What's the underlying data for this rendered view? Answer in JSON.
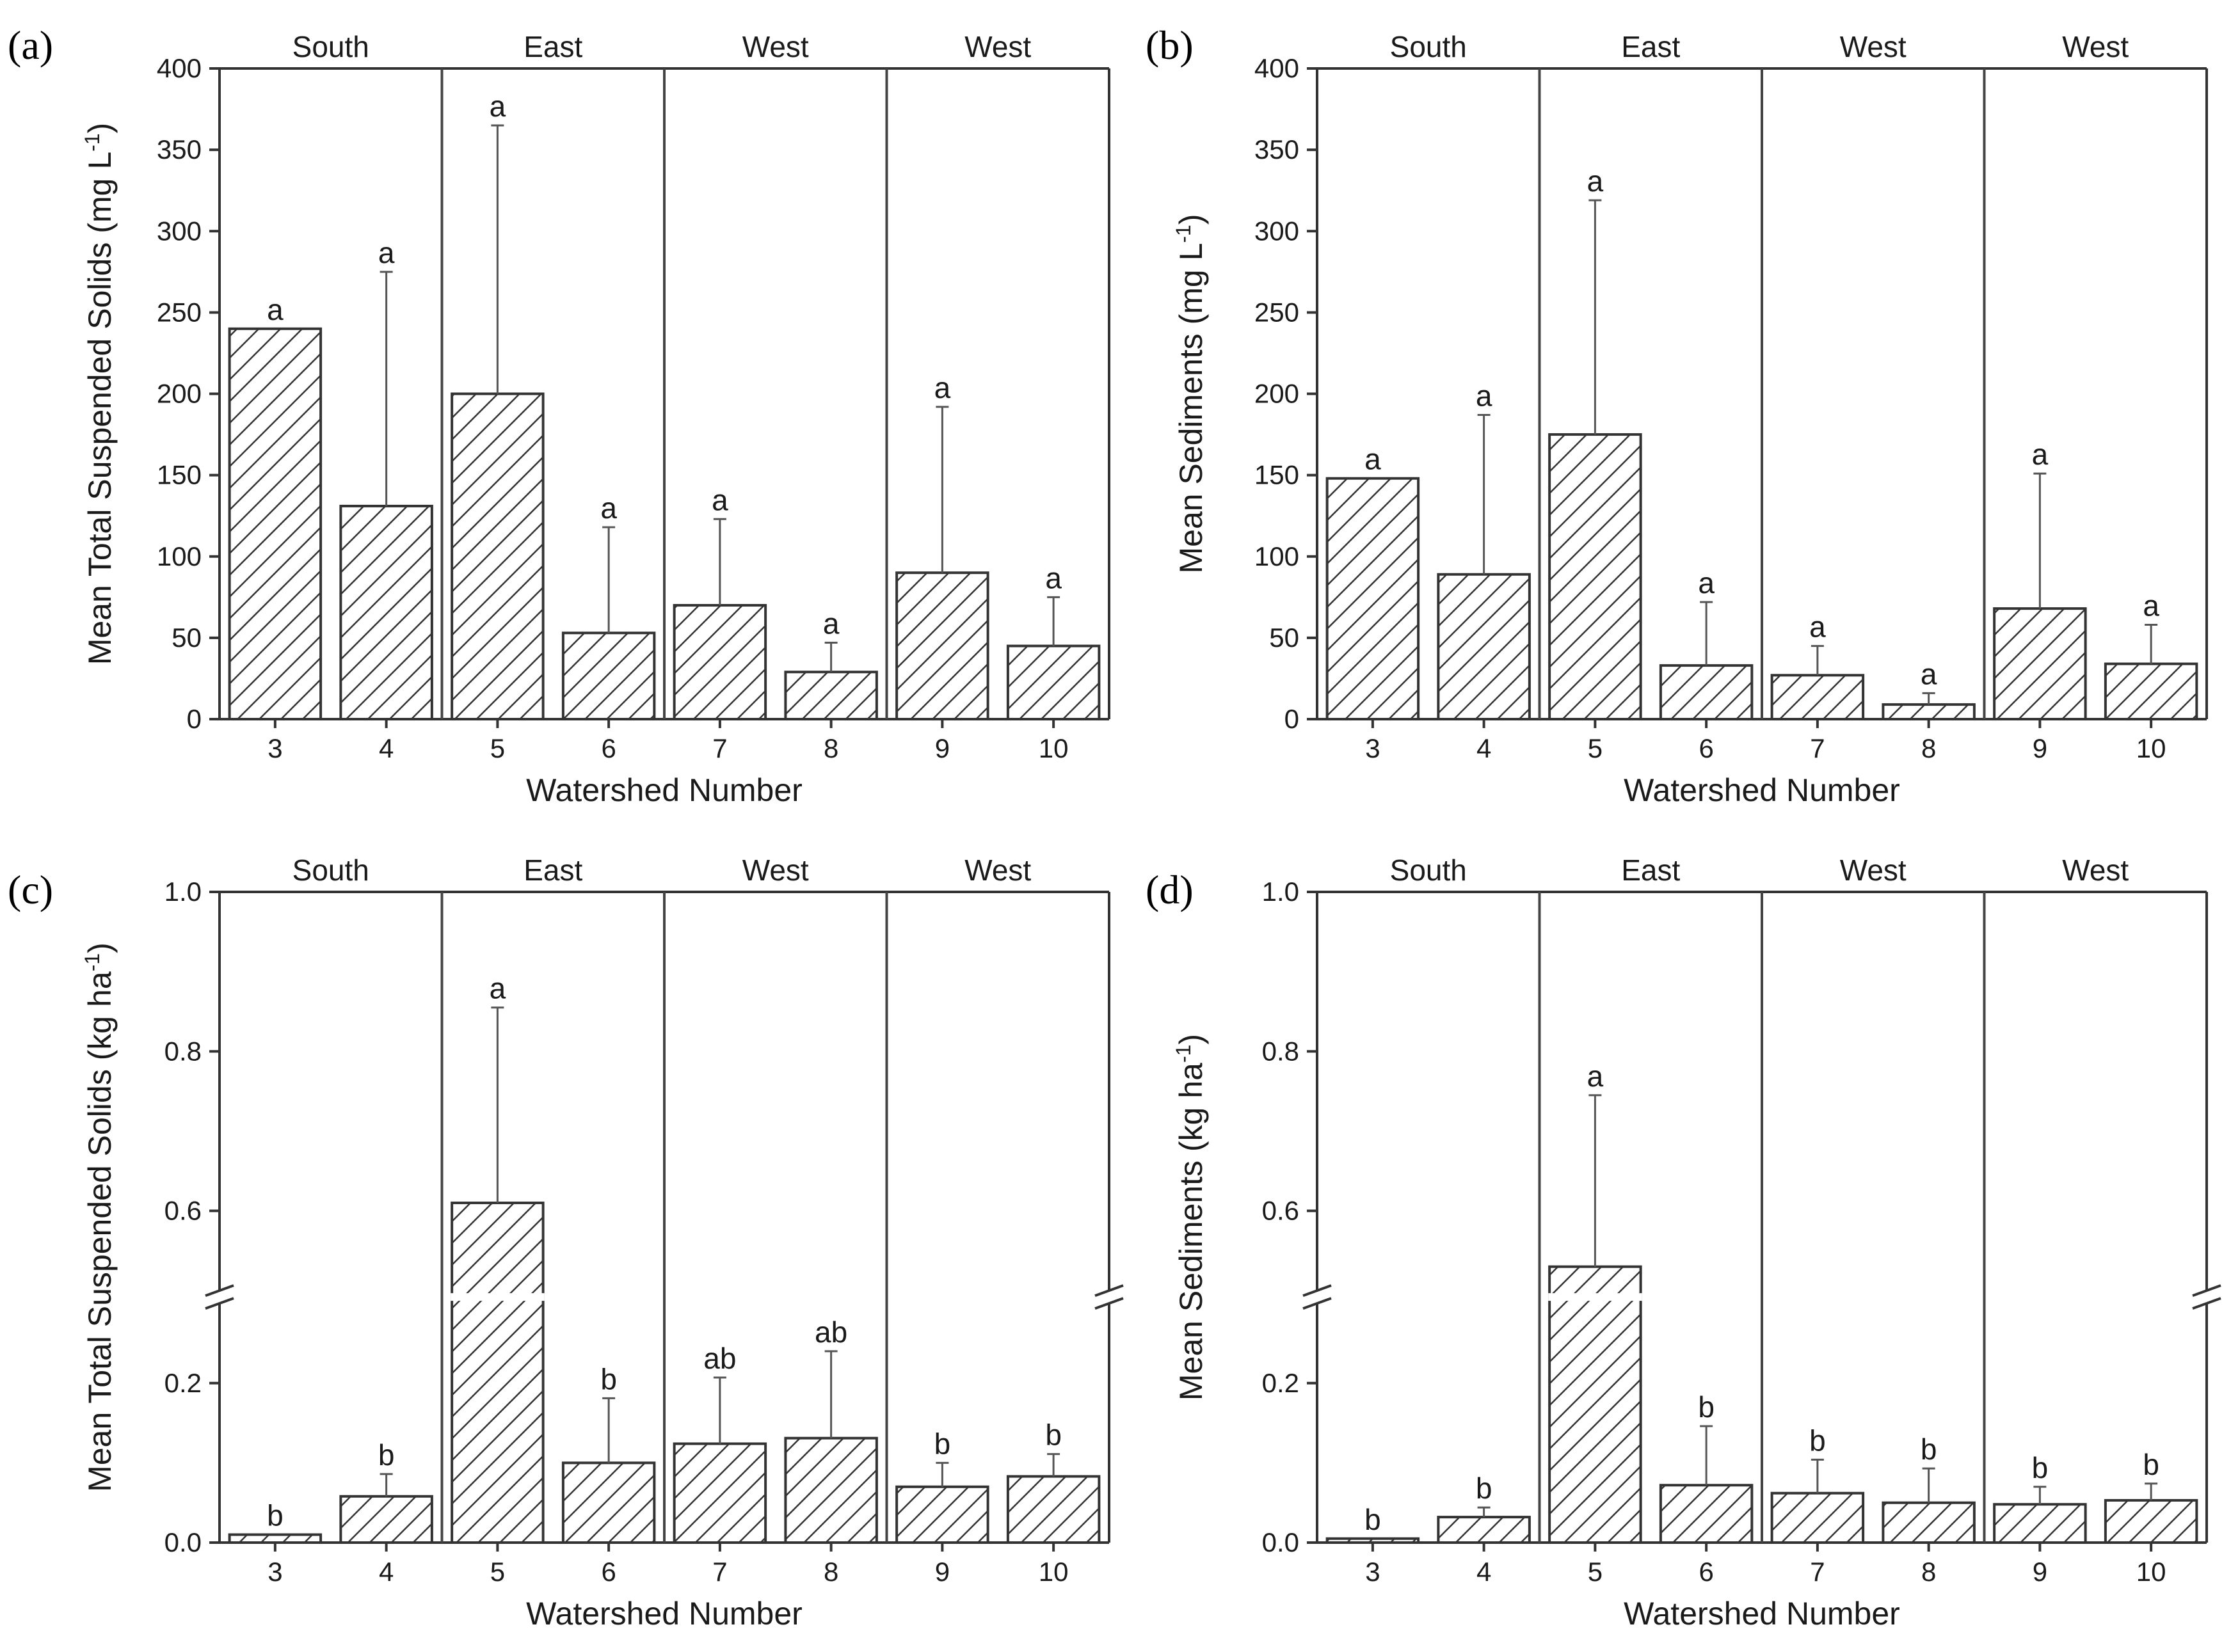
{
  "figure": {
    "hatch_color": "#333333",
    "frame_color": "#333333"
  },
  "chart_data": [
    {
      "panel": "(a)",
      "type": "bar",
      "categories": [
        "3",
        "4",
        "5",
        "6",
        "7",
        "8",
        "9",
        "10"
      ],
      "groups": [
        {
          "label": "South",
          "categories": [
            "3",
            "4"
          ]
        },
        {
          "label": "East",
          "categories": [
            "5",
            "6"
          ]
        },
        {
          "label": "West",
          "categories": [
            "7",
            "8"
          ]
        },
        {
          "label": "West",
          "categories": [
            "9",
            "10"
          ]
        }
      ],
      "values": [
        240,
        131,
        200,
        53,
        70,
        29,
        90,
        45
      ],
      "error_upper": [
        240,
        275,
        365,
        118,
        123,
        47,
        192,
        75
      ],
      "significance": [
        "a",
        "a",
        "a",
        "a",
        "a",
        "a",
        "a",
        "a"
      ],
      "xlabel": "Watershed Number",
      "ylabel": "Mean Total Suspended Solids (mg L",
      "ylabel_superscript": "-1",
      "ylabel_suffix": ")",
      "ylim": [
        0,
        400
      ],
      "yticks": [
        0,
        50,
        100,
        150,
        200,
        250,
        300,
        350,
        400
      ],
      "ytick_labels": [
        "0",
        "50",
        "100",
        "150",
        "200",
        "250",
        "300",
        "350",
        "400"
      ],
      "axis_break": false
    },
    {
      "panel": "(b)",
      "type": "bar",
      "categories": [
        "3",
        "4",
        "5",
        "6",
        "7",
        "8",
        "9",
        "10"
      ],
      "groups": [
        {
          "label": "South",
          "categories": [
            "3",
            "4"
          ]
        },
        {
          "label": "East",
          "categories": [
            "5",
            "6"
          ]
        },
        {
          "label": "West",
          "categories": [
            "7",
            "8"
          ]
        },
        {
          "label": "West",
          "categories": [
            "9",
            "10"
          ]
        }
      ],
      "values": [
        148,
        89,
        175,
        33,
        27,
        9,
        68,
        34
      ],
      "error_upper": [
        148,
        187,
        319,
        72,
        45,
        16,
        151,
        58
      ],
      "significance": [
        "a",
        "a",
        "a",
        "a",
        "a",
        "a",
        "a",
        "a"
      ],
      "xlabel": "Watershed Number",
      "ylabel": "Mean Sediments (mg L",
      "ylabel_superscript": "-1",
      "ylabel_suffix": ")",
      "ylim": [
        0,
        400
      ],
      "yticks": [
        0,
        50,
        100,
        150,
        200,
        250,
        300,
        350,
        400
      ],
      "ytick_labels": [
        "0",
        "50",
        "100",
        "150",
        "200",
        "250",
        "300",
        "350",
        "400"
      ],
      "axis_break": false
    },
    {
      "panel": "(c)",
      "type": "bar",
      "categories": [
        "3",
        "4",
        "5",
        "6",
        "7",
        "8",
        "9",
        "10"
      ],
      "groups": [
        {
          "label": "South",
          "categories": [
            "3",
            "4"
          ]
        },
        {
          "label": "East",
          "categories": [
            "5",
            "6"
          ]
        },
        {
          "label": "West",
          "categories": [
            "7",
            "8"
          ]
        },
        {
          "label": "West",
          "categories": [
            "9",
            "10"
          ]
        }
      ],
      "values": [
        0.01,
        0.058,
        0.61,
        0.1,
        0.124,
        0.131,
        0.07,
        0.083
      ],
      "error_upper": [
        0.01,
        0.086,
        0.855,
        0.181,
        0.207,
        0.24,
        0.1,
        0.111
      ],
      "significance": [
        "b",
        "b",
        "a",
        "b",
        "ab",
        "ab",
        "b",
        "b"
      ],
      "xlabel": "Watershed Number",
      "ylabel": "Mean Total Suspended Solids (kg ha",
      "ylabel_superscript": "-1",
      "ylabel_suffix": ")",
      "ylim": [
        0,
        1.0
      ],
      "yticks": [
        0.0,
        0.2,
        0.6,
        0.8,
        1.0
      ],
      "ytick_labels": [
        "0.0",
        "0.2",
        "0.6",
        "0.8",
        "1.0"
      ],
      "axis_break": true,
      "break_range": [
        0.3,
        0.5
      ]
    },
    {
      "panel": "(d)",
      "type": "bar",
      "categories": [
        "3",
        "4",
        "5",
        "6",
        "7",
        "8",
        "9",
        "10"
      ],
      "groups": [
        {
          "label": "South",
          "categories": [
            "3",
            "4"
          ]
        },
        {
          "label": "East",
          "categories": [
            "5",
            "6"
          ]
        },
        {
          "label": "West",
          "categories": [
            "7",
            "8"
          ]
        },
        {
          "label": "West",
          "categories": [
            "9",
            "10"
          ]
        }
      ],
      "values": [
        0.005,
        0.032,
        0.53,
        0.072,
        0.062,
        0.05,
        0.048,
        0.053
      ],
      "error_upper": [
        0.005,
        0.044,
        0.745,
        0.146,
        0.104,
        0.093,
        0.07,
        0.074
      ],
      "significance": [
        "b",
        "b",
        "a",
        "b",
        "b",
        "b",
        "b",
        "b"
      ],
      "xlabel": "Watershed Number",
      "ylabel": "Mean Sediments (kg ha",
      "ylabel_superscript": "-1",
      "ylabel_suffix": ")",
      "ylim": [
        0,
        1.0
      ],
      "yticks": [
        0.0,
        0.2,
        0.6,
        0.8,
        1.0
      ],
      "ytick_labels": [
        "0.0",
        "0.2",
        "0.6",
        "0.8",
        "1.0"
      ],
      "axis_break": true,
      "break_range": [
        0.3,
        0.5
      ]
    }
  ]
}
